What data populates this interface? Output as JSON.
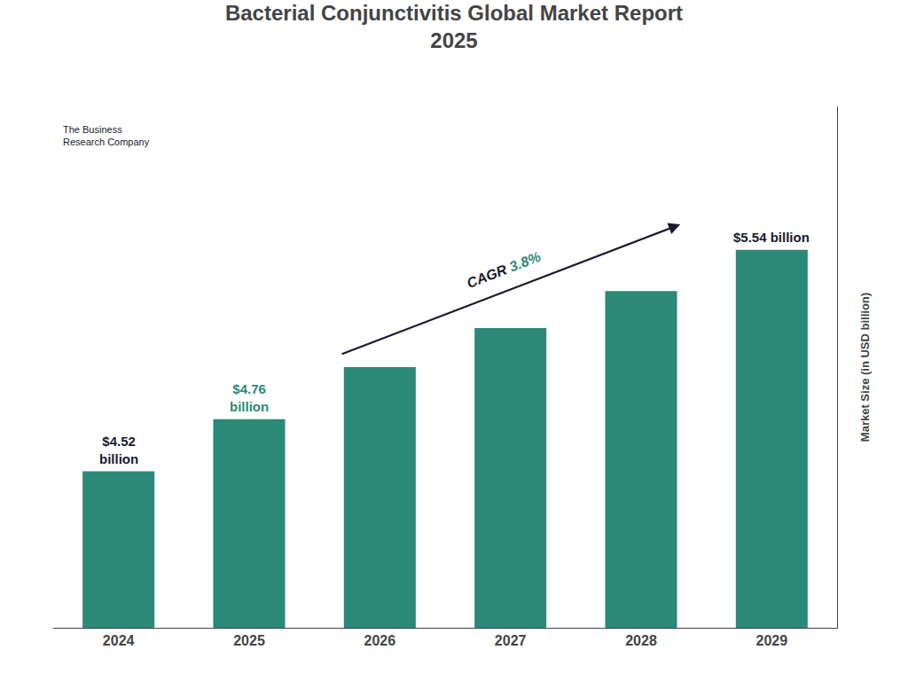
{
  "chart_data": {
    "type": "bar",
    "title": "Bacterial Conjunctivitis Global Market Report\n2025",
    "categories": [
      "2024",
      "2025",
      "2026",
      "2027",
      "2028",
      "2029"
    ],
    "values": [
      4.52,
      4.76,
      5.0,
      5.18,
      5.35,
      5.54
    ],
    "color": "#2a8a77",
    "ylabel": "Market Size (in USD billion)",
    "ylim": [
      3.8,
      6.2
    ],
    "yticks": [],
    "tick_labels": "x",
    "grid": false,
    "data_labels": true,
    "value_labels": [
      "$4.52\nbillion",
      "$4.76\nbillion",
      null,
      null,
      null,
      "$5.54 billion"
    ],
    "value_label_colors": [
      "#1a1a2e",
      "#2a8a77",
      null,
      null,
      null,
      "#1a1a2e"
    ],
    "annotations": [
      {
        "text": "CAGR",
        "color": "#1a1a2e"
      },
      {
        "text": " 3.8%",
        "color": "#2a8a77"
      },
      {
        "text": "The Business\nResearch Company",
        "color": "#1a1a2e"
      }
    ]
  }
}
